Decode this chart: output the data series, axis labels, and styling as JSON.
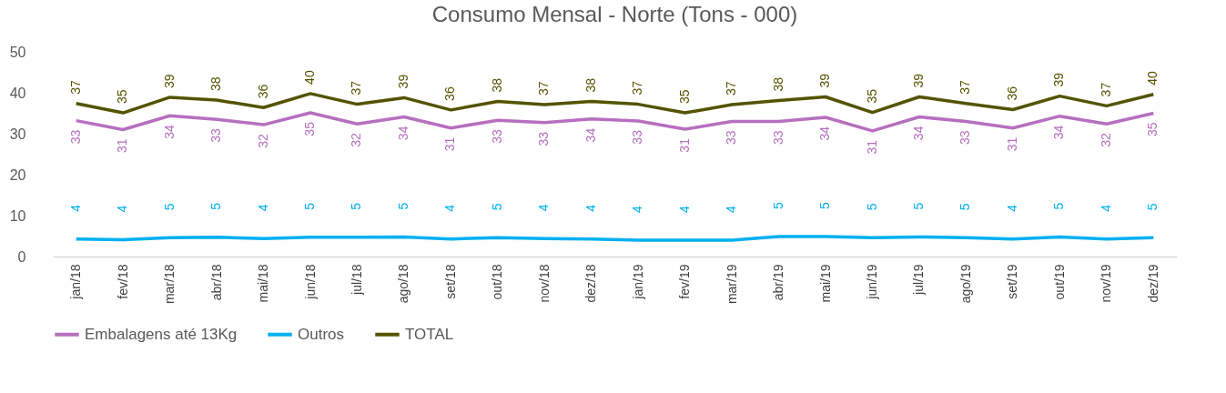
{
  "chart_data": {
    "type": "line",
    "title": "Consumo Mensal - Norte (Tons - 000)",
    "categories": [
      "jan/18",
      "fev/18",
      "mar/18",
      "abr/18",
      "mai/18",
      "jun/18",
      "jul/18",
      "ago/18",
      "set/18",
      "out/18",
      "nov/18",
      "dez/18",
      "jan/19",
      "fev/19",
      "mar/19",
      "abr/19",
      "mai/19",
      "jun/19",
      "jul/19",
      "ago/19",
      "set/19",
      "out/19",
      "nov/19",
      "dez/19"
    ],
    "ylim": [
      0,
      50
    ],
    "yticks": [
      0,
      10,
      20,
      30,
      40,
      50
    ],
    "grid": false,
    "legend": "bottom",
    "marker": "none",
    "series": [
      {
        "name": "Embalagens até 13Kg",
        "color": "#b66fbf",
        "values": [
          33.2,
          31.0,
          34.4,
          33.5,
          32.2,
          35.1,
          32.4,
          34.1,
          31.4,
          33.3,
          32.7,
          33.6,
          33.1,
          31.1,
          33.0,
          33.0,
          34.0,
          30.7,
          34.1,
          33.0,
          31.4,
          34.3,
          32.4,
          35.0
        ],
        "value_labels": [
          "33",
          "31",
          "34",
          "33",
          "32",
          "35",
          "32",
          "34",
          "31",
          "33",
          "33",
          "34",
          "33",
          "31",
          "33",
          "33",
          "34",
          "31",
          "34",
          "33",
          "31",
          "34",
          "32",
          "35"
        ]
      },
      {
        "name": "Outros",
        "color": "#00b0f0",
        "values": [
          4.3,
          4.1,
          4.6,
          4.7,
          4.4,
          4.7,
          4.7,
          4.8,
          4.3,
          4.6,
          4.4,
          4.3,
          4.0,
          4.0,
          4.0,
          4.9,
          4.9,
          4.6,
          4.8,
          4.6,
          4.3,
          4.8,
          4.3,
          4.6
        ],
        "value_labels": [
          "4",
          "4",
          "5",
          "5",
          "4",
          "5",
          "5",
          "5",
          "4",
          "5",
          "4",
          "4",
          "4",
          "4",
          "4",
          "5",
          "5",
          "5",
          "5",
          "5",
          "4",
          "5",
          "4",
          "5"
        ]
      },
      {
        "name": "TOTAL",
        "color": "#535300",
        "values": [
          37.4,
          35.1,
          38.9,
          38.2,
          36.4,
          39.8,
          37.2,
          38.8,
          35.8,
          37.9,
          37.1,
          37.9,
          37.2,
          35.1,
          37.1,
          38.1,
          39.0,
          35.2,
          39.0,
          37.4,
          35.9,
          39.2,
          36.8,
          39.6
        ],
        "value_labels": [
          "37",
          "35",
          "39",
          "38",
          "36",
          "40",
          "37",
          "39",
          "36",
          "38",
          "37",
          "38",
          "37",
          "35",
          "37",
          "38",
          "39",
          "35",
          "39",
          "37",
          "36",
          "39",
          "37",
          "40"
        ]
      }
    ]
  }
}
